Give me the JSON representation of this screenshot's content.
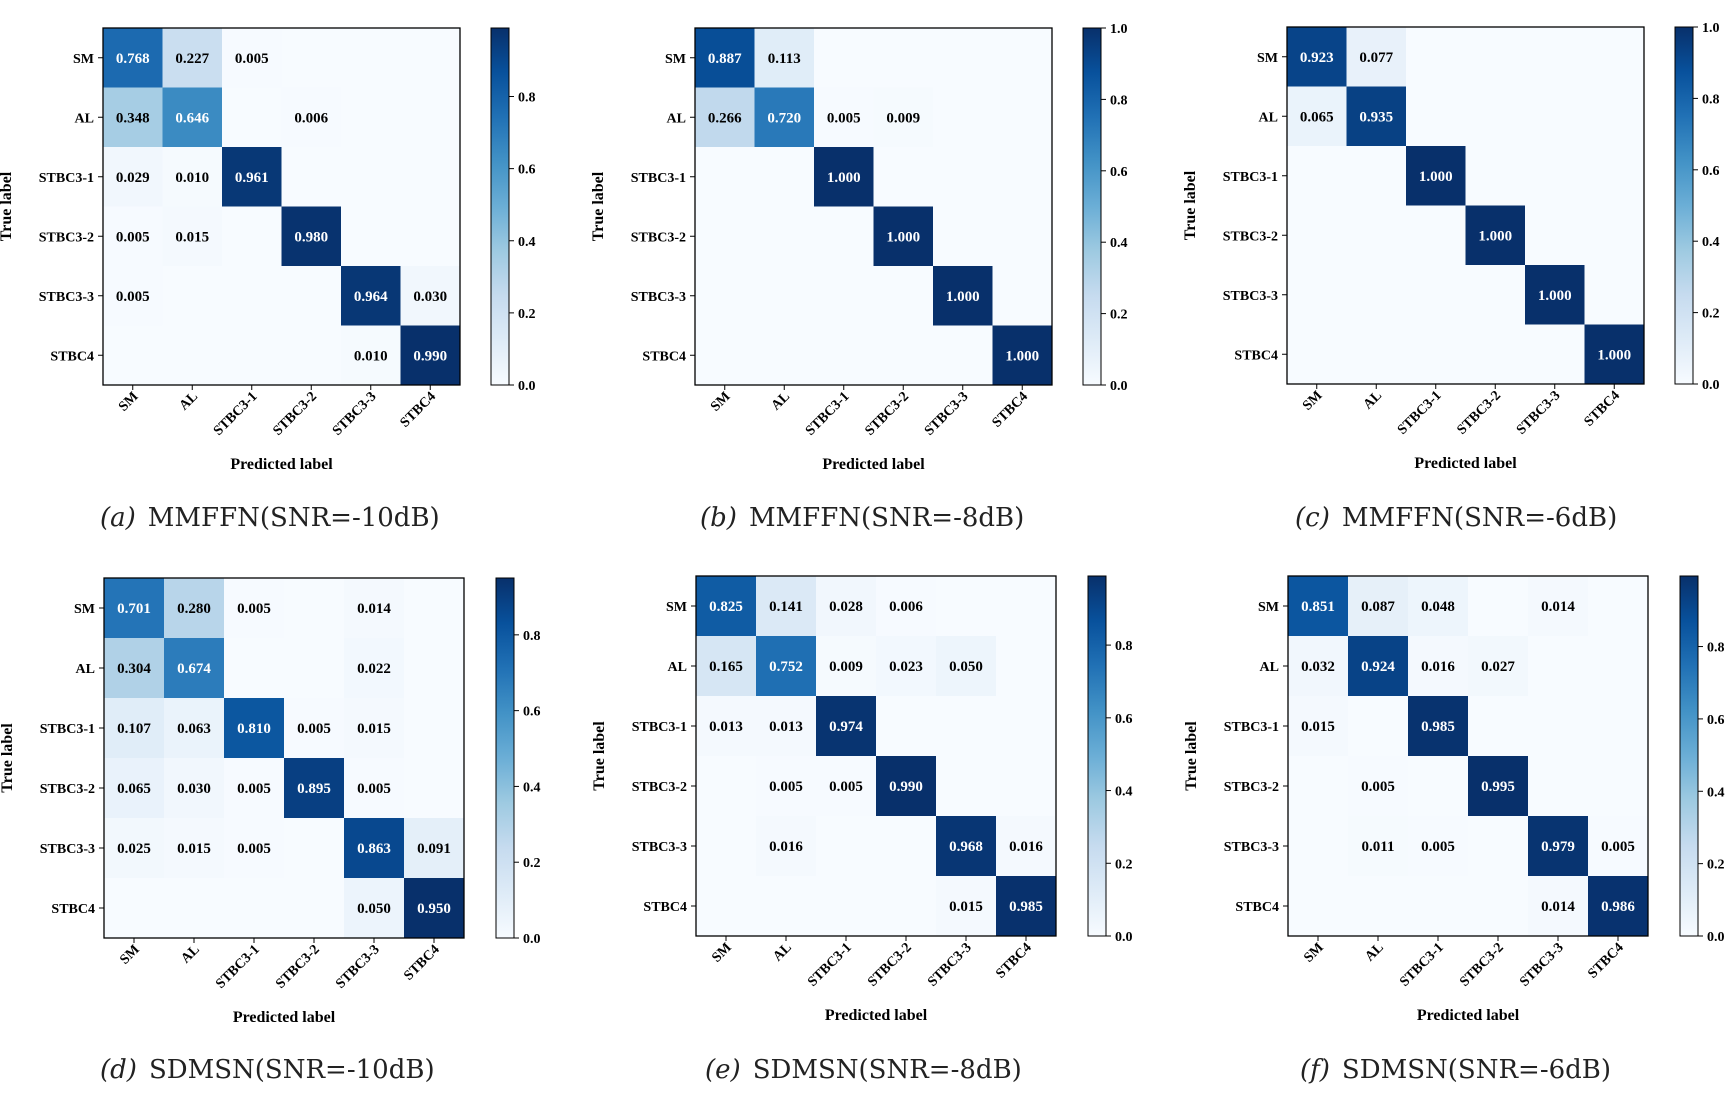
{
  "chart_data": [
    {
      "type": "heatmap",
      "caption_letter": "(a)",
      "caption_text": "MMFFN(SNR=-10dB)",
      "xlabel": "Predicted label",
      "ylabel": "True label",
      "labels": [
        "SM",
        "AL",
        "STBC3-1",
        "STBC3-2",
        "STBC3-3",
        "STBC4"
      ],
      "colorbar_ticks": [
        "0.0",
        "0.2",
        "0.4",
        "0.6",
        "0.8"
      ],
      "colorbar_max": 0.99,
      "matrix": [
        [
          "0.768",
          "0.227",
          "0.005",
          "",
          "",
          ""
        ],
        [
          "0.348",
          "0.646",
          "",
          "0.006",
          "",
          ""
        ],
        [
          "0.029",
          "0.010",
          "0.961",
          "",
          "",
          ""
        ],
        [
          "0.005",
          "0.015",
          "",
          "0.980",
          "",
          ""
        ],
        [
          "0.005",
          "",
          "",
          "",
          "0.964",
          "0.030"
        ],
        [
          "",
          "",
          "",
          "",
          "0.010",
          "0.990"
        ]
      ]
    },
    {
      "type": "heatmap",
      "caption_letter": "(b)",
      "caption_text": "MMFFN(SNR=-8dB)",
      "xlabel": "Predicted label",
      "ylabel": "True label",
      "labels": [
        "SM",
        "AL",
        "STBC3-1",
        "STBC3-2",
        "STBC3-3",
        "STBC4"
      ],
      "colorbar_ticks": [
        "0.0",
        "0.2",
        "0.4",
        "0.6",
        "0.8",
        "1.0"
      ],
      "colorbar_max": 1.0,
      "matrix": [
        [
          "0.887",
          "0.113",
          "",
          "",
          "",
          ""
        ],
        [
          "0.266",
          "0.720",
          "0.005",
          "0.009",
          "",
          ""
        ],
        [
          "",
          "",
          "1.000",
          "",
          "",
          ""
        ],
        [
          "",
          "",
          "",
          "1.000",
          "",
          ""
        ],
        [
          "",
          "",
          "",
          "",
          "1.000",
          ""
        ],
        [
          "",
          "",
          "",
          "",
          "",
          "1.000"
        ]
      ]
    },
    {
      "type": "heatmap",
      "caption_letter": "(c)",
      "caption_text": "MMFFN(SNR=-6dB)",
      "xlabel": "Predicted label",
      "ylabel": "True label",
      "labels": [
        "SM",
        "AL",
        "STBC3-1",
        "STBC3-2",
        "STBC3-3",
        "STBC4"
      ],
      "colorbar_ticks": [
        "0.0",
        "0.2",
        "0.4",
        "0.6",
        "0.8",
        "1.0"
      ],
      "colorbar_max": 1.0,
      "matrix": [
        [
          "0.923",
          "0.077",
          "",
          "",
          "",
          ""
        ],
        [
          "0.065",
          "0.935",
          "",
          "",
          "",
          ""
        ],
        [
          "",
          "",
          "1.000",
          "",
          "",
          ""
        ],
        [
          "",
          "",
          "",
          "1.000",
          "",
          ""
        ],
        [
          "",
          "",
          "",
          "",
          "1.000",
          ""
        ],
        [
          "",
          "",
          "",
          "",
          "",
          "1.000"
        ]
      ]
    },
    {
      "type": "heatmap",
      "caption_letter": "(d)",
      "caption_text": "SDMSN(SNR=-10dB)",
      "xlabel": "Predicted label",
      "ylabel": "True label",
      "labels": [
        "SM",
        "AL",
        "STBC3-1",
        "STBC3-2",
        "STBC3-3",
        "STBC4"
      ],
      "colorbar_ticks": [
        "0.0",
        "0.2",
        "0.4",
        "0.6",
        "0.8"
      ],
      "colorbar_max": 0.95,
      "matrix": [
        [
          "0.701",
          "0.280",
          "0.005",
          "",
          "0.014",
          ""
        ],
        [
          "0.304",
          "0.674",
          "",
          "",
          "0.022",
          ""
        ],
        [
          "0.107",
          "0.063",
          "0.810",
          "0.005",
          "0.015",
          ""
        ],
        [
          "0.065",
          "0.030",
          "0.005",
          "0.895",
          "0.005",
          ""
        ],
        [
          "0.025",
          "0.015",
          "0.005",
          "",
          "0.863",
          "0.091"
        ],
        [
          "",
          "",
          "",
          "",
          "0.050",
          "0.950"
        ]
      ]
    },
    {
      "type": "heatmap",
      "caption_letter": "(e)",
      "caption_text": "SDMSN(SNR=-8dB)",
      "xlabel": "Predicted label",
      "ylabel": "True label",
      "labels": [
        "SM",
        "AL",
        "STBC3-1",
        "STBC3-2",
        "STBC3-3",
        "STBC4"
      ],
      "colorbar_ticks": [
        "0.0",
        "0.2",
        "0.4",
        "0.6",
        "0.8"
      ],
      "colorbar_max": 0.99,
      "matrix": [
        [
          "0.825",
          "0.141",
          "0.028",
          "0.006",
          "",
          ""
        ],
        [
          "0.165",
          "0.752",
          "0.009",
          "0.023",
          "0.050",
          ""
        ],
        [
          "0.013",
          "0.013",
          "0.974",
          "",
          "",
          ""
        ],
        [
          "",
          "0.005",
          "0.005",
          "0.990",
          "",
          ""
        ],
        [
          "",
          "0.016",
          "",
          "",
          "0.968",
          "0.016"
        ],
        [
          "",
          "",
          "",
          "",
          "0.015",
          "0.985"
        ]
      ]
    },
    {
      "type": "heatmap",
      "caption_letter": "(f)",
      "caption_text": "SDMSN(SNR=-6dB)",
      "xlabel": "Predicted label",
      "ylabel": "True label",
      "labels": [
        "SM",
        "AL",
        "STBC3-1",
        "STBC3-2",
        "STBC3-3",
        "STBC4"
      ],
      "colorbar_ticks": [
        "0.0",
        "0.2",
        "0.4",
        "0.6",
        "0.8"
      ],
      "colorbar_max": 0.995,
      "matrix": [
        [
          "0.851",
          "0.087",
          "0.048",
          "",
          "0.014",
          ""
        ],
        [
          "0.032",
          "0.924",
          "0.016",
          "0.027",
          "",
          ""
        ],
        [
          "0.015",
          "",
          "0.985",
          "",
          "",
          ""
        ],
        [
          "",
          "0.005",
          "",
          "0.995",
          "",
          ""
        ],
        [
          "",
          "0.011",
          "0.005",
          "",
          "0.979",
          "0.005"
        ],
        [
          "",
          "",
          "",
          "",
          "0.014",
          "0.986"
        ]
      ]
    }
  ]
}
